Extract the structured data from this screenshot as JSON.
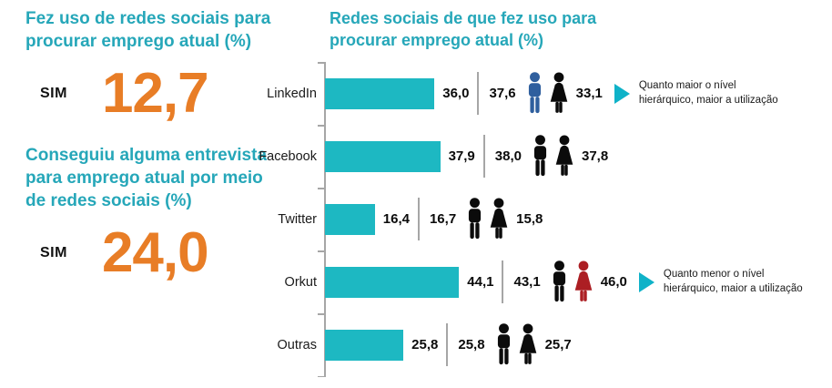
{
  "colors": {
    "teal_title": "#26a7b9",
    "bar_teal": "#1db8c2",
    "orange": "#e87d26",
    "male_blue": "#2f5f9e",
    "female_red": "#ac1e23",
    "icon_black": "#0b0b0b",
    "line_gray": "#a6a6a6",
    "arrow_teal": "#0fb2c8"
  },
  "left_panel": {
    "stats": [
      {
        "title": "Fez uso de redes sociais para procurar emprego atual (%)",
        "answer_label": "SIM",
        "value": "12,7"
      },
      {
        "title": "Conseguiu alguma entrevista para emprego atual por meio de redes sociais (%)",
        "answer_label": "SIM",
        "value": "24,0"
      }
    ]
  },
  "chart_data": {
    "type": "bar",
    "orientation": "horizontal",
    "title": "Redes sociais de que fez uso para procurar emprego atual (%)",
    "categories": [
      "LinkedIn",
      "Facebook",
      "Twitter",
      "Orkut",
      "Outras"
    ],
    "series": [
      {
        "name": "Total",
        "values": [
          36.0,
          37.9,
          16.4,
          44.1,
          25.8
        ],
        "labels": [
          "36,0",
          "37,9",
          "16,4",
          "44,1",
          "25,8"
        ]
      },
      {
        "name": "Masculino",
        "values": [
          37.6,
          38.0,
          16.7,
          43.1,
          25.8
        ],
        "labels": [
          "37,6",
          "38,0",
          "16,7",
          "43,1",
          "25,8"
        ]
      },
      {
        "name": "Feminino",
        "values": [
          33.1,
          37.8,
          15.8,
          46.0,
          25.7
        ],
        "labels": [
          "33,1",
          "37,8",
          "15,8",
          "46,0",
          "25,7"
        ]
      }
    ],
    "xlim": [
      0,
      50
    ],
    "grid": false,
    "legend": "none",
    "male_icon_colors": [
      "#2f5f9e",
      "#0b0b0b",
      "#0b0b0b",
      "#0b0b0b",
      "#0b0b0b"
    ],
    "female_icon_colors": [
      "#0b0b0b",
      "#0b0b0b",
      "#0b0b0b",
      "#ac1e23",
      "#0b0b0b"
    ],
    "annotations": [
      {
        "category": "LinkedIn",
        "text": "Quanto maior o nível hierárquico, maior a utilização"
      },
      {
        "category": "Orkut",
        "text": "Quanto menor o nível hierárquico, maior a utilização"
      }
    ]
  }
}
